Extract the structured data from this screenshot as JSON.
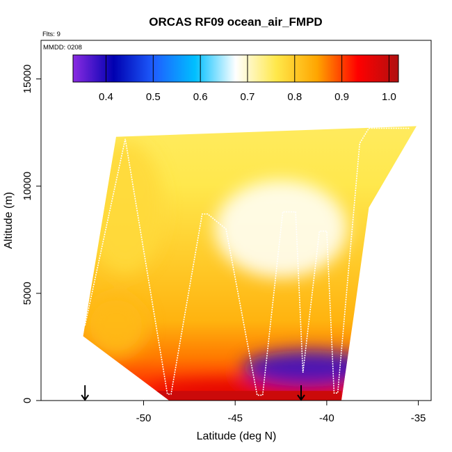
{
  "chart_data": {
    "type": "heatmap",
    "title": "ORCAS RF09 ocean_air_FMPD",
    "xlabel": "Latitude (deg N)",
    "ylabel": "Altitude (m)",
    "notes": {
      "flights": "Flts: 9",
      "mmdd": "MMDD: 0208"
    },
    "xlim": [
      -55.6,
      -34.3
    ],
    "ylim": [
      0,
      16800
    ],
    "x_ticks": [
      -50,
      -45,
      -40,
      -35
    ],
    "x_tick_labels": [
      "-50",
      "-45",
      "-40",
      "-35"
    ],
    "y_ticks": [
      0,
      5000,
      10000,
      15000
    ],
    "y_tick_labels": [
      "0",
      "5000",
      "10000",
      "15000"
    ],
    "colorbar": {
      "range": [
        0.33,
        1.02
      ],
      "ticks": [
        0.4,
        0.5,
        0.6,
        0.7,
        0.8,
        0.9,
        1.0
      ],
      "tick_labels": [
        "0.4",
        "0.5",
        "0.6",
        "0.7",
        "0.8",
        "0.9",
        "1.0"
      ],
      "colors": [
        "#8a2be2",
        "#0000b0",
        "#1e5fff",
        "#00bfff",
        "#ffffff",
        "#ffe84a",
        "#ffa500",
        "#ff0000",
        "#b01010"
      ]
    },
    "field_boundary": {
      "lat": [
        -53.3,
        -48.6,
        -39.2,
        -38.5,
        -37.7,
        -35.1,
        -51.5
      ],
      "alt": [
        3000,
        0,
        0,
        4100,
        9000,
        12800,
        12300
      ]
    },
    "field_features": [
      {
        "description": "surface high",
        "lat": -44.0,
        "alt": 500,
        "value": 0.97
      },
      {
        "description": "low-altitude minimum",
        "lat": -41.0,
        "alt": 1500,
        "value": 0.38
      },
      {
        "description": "mid-level minimum",
        "lat": -42.5,
        "alt": 8000,
        "value": 0.68
      },
      {
        "description": "western upper region",
        "lat": -51.0,
        "alt": 9000,
        "value": 0.78
      },
      {
        "description": "southern lower region",
        "lat": -51.5,
        "alt": 3500,
        "value": 0.82
      }
    ],
    "flight_track": {
      "lat": [
        -53.2,
        -51.0,
        -48.7,
        -48.5,
        -46.8,
        -46.5,
        -45.5,
        -43.8,
        -43.5,
        -42.4,
        -41.7,
        -41.3,
        -40.4,
        -40.0,
        -39.6,
        -39.4,
        -38.2,
        -37.7,
        -35.5
      ],
      "alt": [
        3500,
        12200,
        300,
        300,
        8700,
        8700,
        8000,
        250,
        250,
        8800,
        8800,
        1300,
        7900,
        7900,
        350,
        350,
        12000,
        12700,
        12700
      ]
    },
    "arrows": [
      {
        "lat": -53.2,
        "direction": "down"
      },
      {
        "lat": -41.4,
        "direction": "down"
      }
    ]
  }
}
